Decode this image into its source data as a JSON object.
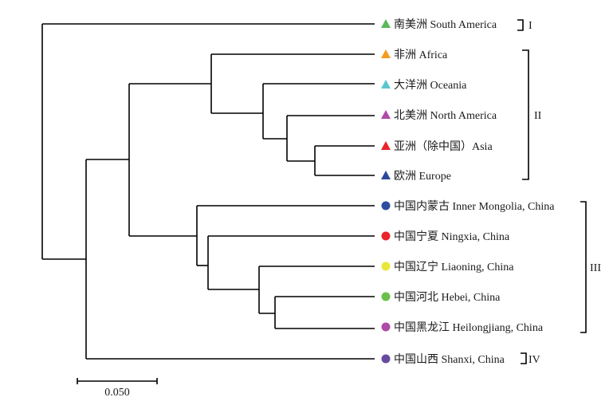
{
  "tree": {
    "scale_bar_label": "0.050",
    "leaves": [
      {
        "label": "南美洲 South America",
        "marker": "triangle",
        "color": "#5cb85c"
      },
      {
        "label": "非洲 Africa",
        "marker": "triangle",
        "color": "#f39c1f"
      },
      {
        "label": "大洋洲 Oceania",
        "marker": "triangle",
        "color": "#5bc6d0"
      },
      {
        "label": "北美洲 North America",
        "marker": "triangle",
        "color": "#b04aa8"
      },
      {
        "label": "亚洲（除中国）Asia",
        "marker": "triangle",
        "color": "#e8262b"
      },
      {
        "label": "欧洲 Europe",
        "marker": "triangle",
        "color": "#2a4a9a"
      },
      {
        "label": "中国内蒙古 Inner Mongolia, China",
        "marker": "circle",
        "color": "#2d4ea0"
      },
      {
        "label": "中国宁夏 Ningxia, China",
        "marker": "circle",
        "color": "#e8262b"
      },
      {
        "label": "中国辽宁 Liaoning, China",
        "marker": "circle",
        "color": "#e8e83a"
      },
      {
        "label": "中国河北 Hebei, China",
        "marker": "circle",
        "color": "#6cbf4a"
      },
      {
        "label": "中国黑龙江 Heilongjiang, China",
        "marker": "circle",
        "color": "#b04aa8"
      },
      {
        "label": "中国山西 Shanxi, China",
        "marker": "circle",
        "color": "#6a4aa0"
      }
    ],
    "groups": [
      {
        "label": "I"
      },
      {
        "label": "II"
      },
      {
        "label": "III"
      },
      {
        "label": "IV"
      }
    ]
  }
}
